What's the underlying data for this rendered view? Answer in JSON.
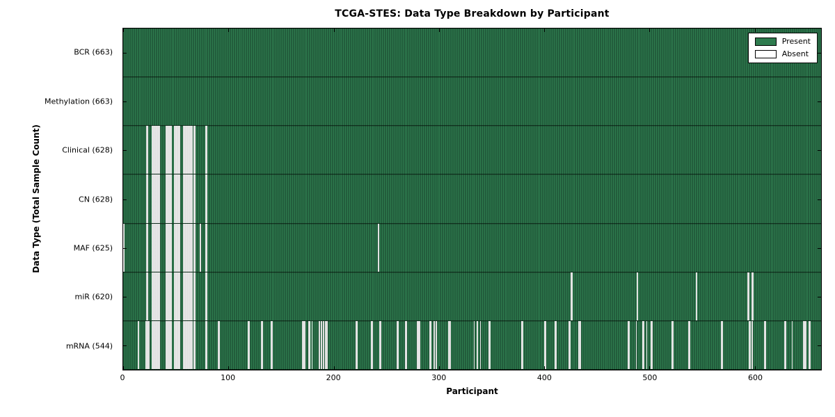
{
  "title": "TCGA-STES: Data Type Breakdown by Participant",
  "x_axis": {
    "label": "Participant",
    "ticks": [
      0,
      100,
      200,
      300,
      400,
      500,
      600
    ],
    "max": 663
  },
  "y_axis": {
    "label": "Data Type (Total Sample Count)"
  },
  "legend": {
    "present_label": "Present",
    "absent_label": "Absent"
  },
  "colors": {
    "present": "#2e7b4e",
    "present_stripe_dark": "#163f29",
    "absent": "#f0f0f0",
    "absent_edge": "#b9b9b9",
    "axis": "#000000",
    "background": "#ffffff"
  },
  "chart_data": {
    "type": "heatmap",
    "title": "TCGA-STES: Data Type Breakdown by Participant",
    "xlabel": "Participant",
    "ylabel": "Data Type (Total Sample Count)",
    "xlim": [
      0,
      663
    ],
    "x_ticks": [
      0,
      100,
      200,
      300,
      400,
      500,
      600
    ],
    "legend_entries": [
      "Present",
      "Absent"
    ],
    "legend_position": "upper right",
    "n_participants": 663,
    "rows": [
      {
        "name": "BCR",
        "label": "BCR (663)",
        "present_count": 663,
        "absent_count": 0,
        "absent_participants": []
      },
      {
        "name": "Methylation",
        "label": "Methylation (663)",
        "present_count": 663,
        "absent_count": 0,
        "absent_participants": []
      },
      {
        "name": "Clinical",
        "label": "Clinical (628)",
        "present_count": 628,
        "absent_count": 35,
        "absent_participants": [
          22,
          23,
          27,
          28,
          29,
          30,
          31,
          32,
          33,
          34,
          40,
          41,
          42,
          43,
          44,
          45,
          48,
          49,
          50,
          51,
          52,
          53,
          57,
          58,
          59,
          60,
          61,
          62,
          63,
          64,
          65,
          67,
          68,
          78,
          79
        ]
      },
      {
        "name": "CN",
        "label": "CN (628)",
        "present_count": 628,
        "absent_count": 35,
        "absent_participants": [
          22,
          23,
          27,
          28,
          29,
          30,
          31,
          32,
          33,
          34,
          40,
          41,
          42,
          43,
          44,
          45,
          48,
          49,
          50,
          51,
          52,
          53,
          57,
          58,
          59,
          60,
          61,
          62,
          63,
          64,
          65,
          67,
          68,
          78,
          79
        ]
      },
      {
        "name": "MAF",
        "label": "MAF (625)",
        "present_count": 625,
        "absent_count": 38,
        "absent_participants": [
          0,
          22,
          23,
          27,
          28,
          29,
          30,
          31,
          32,
          33,
          34,
          40,
          41,
          42,
          43,
          44,
          45,
          48,
          49,
          50,
          51,
          52,
          53,
          57,
          58,
          59,
          60,
          61,
          62,
          63,
          64,
          65,
          67,
          68,
          73,
          78,
          79,
          242
        ]
      },
      {
        "name": "miR",
        "label": "miR (620)",
        "present_count": 620,
        "absent_count": 43,
        "absent_participants": [
          22,
          23,
          27,
          28,
          29,
          30,
          31,
          32,
          33,
          34,
          40,
          41,
          42,
          43,
          44,
          45,
          48,
          49,
          50,
          51,
          52,
          53,
          57,
          58,
          59,
          60,
          61,
          62,
          63,
          64,
          65,
          67,
          68,
          78,
          79,
          425,
          426,
          488,
          544,
          593,
          594,
          597,
          598
        ]
      },
      {
        "name": "mRNA",
        "label": "mRNA (544)",
        "present_count": 544,
        "absent_count": 119,
        "absent_participants": [
          14,
          21,
          22,
          23,
          24,
          27,
          28,
          29,
          30,
          31,
          32,
          33,
          34,
          40,
          41,
          42,
          43,
          44,
          45,
          48,
          49,
          50,
          51,
          52,
          53,
          57,
          58,
          59,
          60,
          61,
          62,
          63,
          64,
          65,
          67,
          68,
          78,
          79,
          90,
          91,
          118,
          119,
          131,
          132,
          140,
          141,
          170,
          171,
          172,
          176,
          177,
          179,
          186,
          188,
          190,
          192,
          193,
          221,
          222,
          235,
          236,
          243,
          244,
          260,
          261,
          268,
          269,
          279,
          280,
          281,
          291,
          292,
          295,
          297,
          309,
          310,
          333,
          336,
          339,
          347,
          348,
          378,
          379,
          400,
          401,
          410,
          411,
          423,
          424,
          432,
          433,
          434,
          479,
          480,
          487,
          493,
          494,
          497,
          501,
          502,
          521,
          522,
          537,
          538,
          568,
          569,
          594,
          595,
          597,
          609,
          610,
          628,
          629,
          635,
          646,
          647,
          648,
          651,
          652
        ]
      }
    ]
  }
}
